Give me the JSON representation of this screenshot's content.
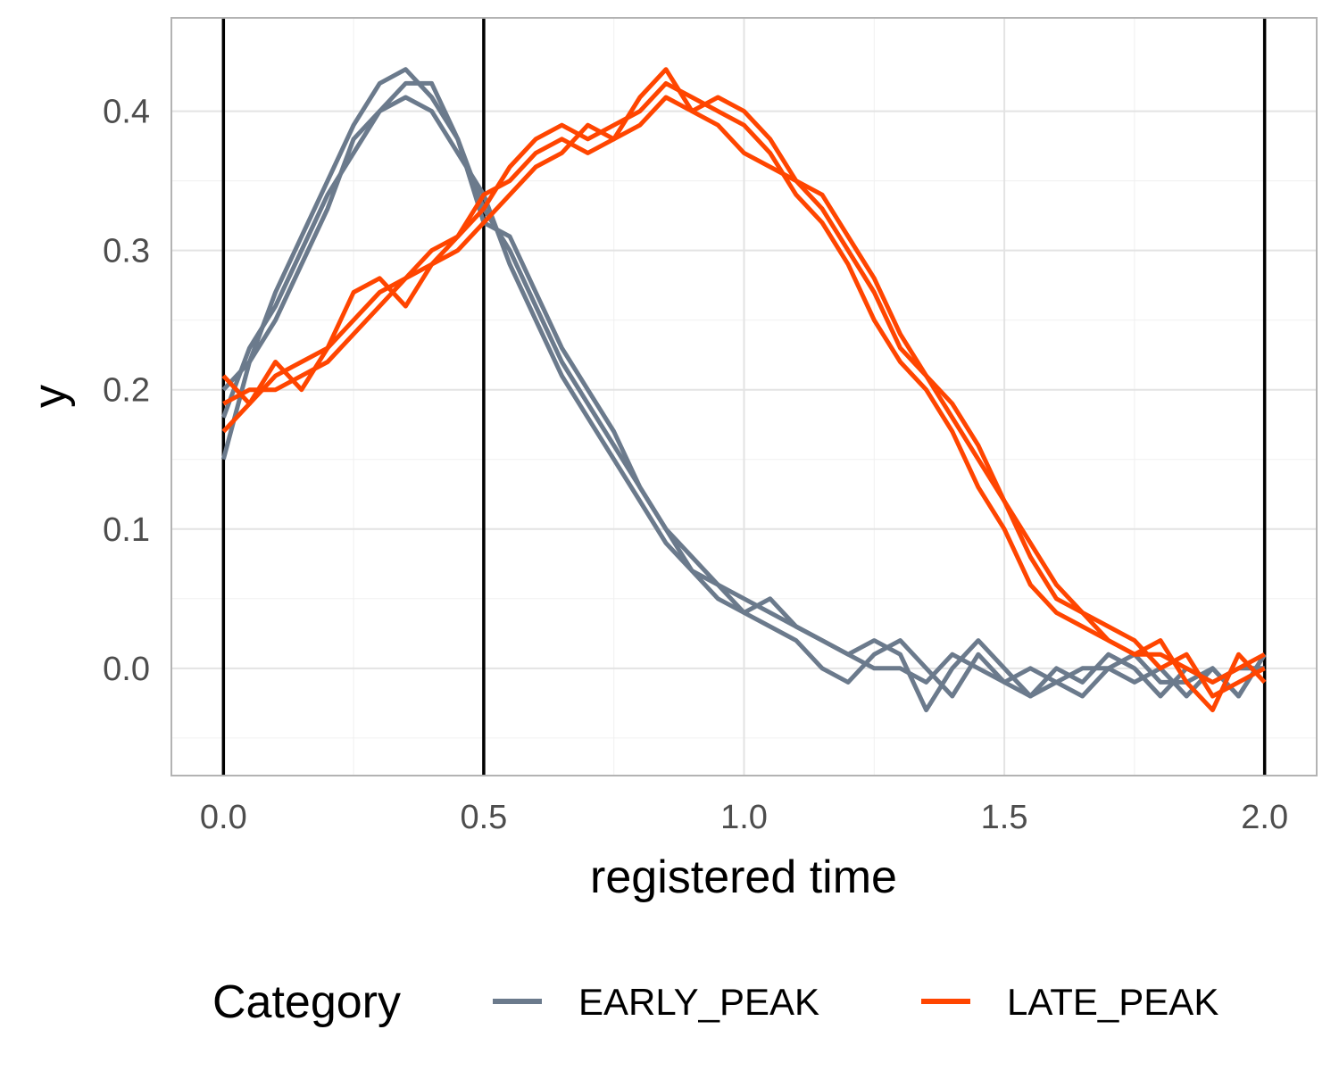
{
  "chart_data": {
    "type": "line",
    "xlabel": "registered time",
    "ylabel": "y",
    "xlim": [
      -0.1,
      2.1
    ],
    "ylim": [
      -0.077,
      0.467
    ],
    "x_ticks": [
      0.0,
      0.5,
      1.0,
      1.5,
      2.0
    ],
    "x_tick_labels": [
      "0.0",
      "0.5",
      "1.0",
      "1.5",
      "2.0"
    ],
    "y_ticks": [
      0.0,
      0.1,
      0.2,
      0.3,
      0.4
    ],
    "y_tick_labels": [
      "0.0",
      "0.1",
      "0.2",
      "0.3",
      "0.4"
    ],
    "vlines": [
      0.0,
      0.5,
      2.0
    ],
    "grid": true,
    "legend": {
      "title": "Category",
      "position": "bottom",
      "entries": [
        {
          "label": "EARLY_PEAK",
          "color": "#6b7a8c"
        },
        {
          "label": "LATE_PEAK",
          "color": "#ff4500"
        }
      ]
    },
    "series": [
      {
        "category": "EARLY_PEAK",
        "color": "#6b7a8c",
        "x": [
          0.0,
          0.05,
          0.1,
          0.15,
          0.2,
          0.25,
          0.3,
          0.35,
          0.4,
          0.45,
          0.5,
          0.55,
          0.6,
          0.65,
          0.7,
          0.75,
          0.8,
          0.85,
          0.9,
          0.95,
          1.0,
          1.05,
          1.1,
          1.15,
          1.2,
          1.25,
          1.3,
          1.35,
          1.4,
          1.45,
          1.5,
          1.55,
          1.6,
          1.65,
          1.7,
          1.75,
          1.8,
          1.85,
          1.9,
          1.95,
          2.0
        ],
        "y": [
          0.15,
          0.22,
          0.27,
          0.31,
          0.35,
          0.39,
          0.42,
          0.43,
          0.41,
          0.38,
          0.33,
          0.3,
          0.26,
          0.22,
          0.19,
          0.16,
          0.13,
          0.1,
          0.07,
          0.06,
          0.05,
          0.04,
          0.03,
          0.02,
          0.01,
          0.0,
          0.0,
          -0.01,
          0.01,
          0.0,
          -0.01,
          0.0,
          -0.01,
          0.0,
          0.0,
          -0.01,
          0.0,
          -0.02,
          0.0,
          -0.02,
          0.01
        ]
      },
      {
        "category": "EARLY_PEAK",
        "color": "#6b7a8c",
        "x": [
          0.0,
          0.05,
          0.1,
          0.15,
          0.2,
          0.25,
          0.3,
          0.35,
          0.4,
          0.45,
          0.5,
          0.55,
          0.6,
          0.65,
          0.7,
          0.75,
          0.8,
          0.85,
          0.9,
          0.95,
          1.0,
          1.05,
          1.1,
          1.15,
          1.2,
          1.25,
          1.3,
          1.35,
          1.4,
          1.45,
          1.5,
          1.55,
          1.6,
          1.65,
          1.7,
          1.75,
          1.8,
          1.85,
          1.9,
          1.95,
          2.0
        ],
        "y": [
          0.18,
          0.23,
          0.26,
          0.3,
          0.34,
          0.37,
          0.4,
          0.41,
          0.4,
          0.37,
          0.34,
          0.29,
          0.25,
          0.21,
          0.18,
          0.15,
          0.12,
          0.09,
          0.07,
          0.05,
          0.04,
          0.03,
          0.02,
          0.0,
          -0.01,
          0.01,
          0.02,
          0.0,
          -0.02,
          0.01,
          -0.01,
          -0.02,
          0.0,
          -0.01,
          0.01,
          0.0,
          -0.02,
          0.0,
          -0.01,
          0.0,
          0.0
        ]
      },
      {
        "category": "EARLY_PEAK",
        "color": "#6b7a8c",
        "x": [
          0.0,
          0.05,
          0.1,
          0.15,
          0.2,
          0.25,
          0.3,
          0.35,
          0.4,
          0.45,
          0.5,
          0.55,
          0.6,
          0.65,
          0.7,
          0.75,
          0.8,
          0.85,
          0.9,
          0.95,
          1.0,
          1.05,
          1.1,
          1.15,
          1.2,
          1.25,
          1.3,
          1.35,
          1.4,
          1.45,
          1.5,
          1.55,
          1.6,
          1.65,
          1.7,
          1.75,
          1.8,
          1.85,
          1.9,
          1.95,
          2.0
        ],
        "y": [
          0.2,
          0.22,
          0.25,
          0.29,
          0.33,
          0.38,
          0.4,
          0.42,
          0.42,
          0.38,
          0.32,
          0.31,
          0.27,
          0.23,
          0.2,
          0.17,
          0.13,
          0.1,
          0.08,
          0.06,
          0.04,
          0.05,
          0.03,
          0.02,
          0.01,
          0.02,
          0.01,
          -0.03,
          0.0,
          0.02,
          0.0,
          -0.02,
          -0.01,
          -0.02,
          0.0,
          0.01,
          -0.01,
          -0.01,
          0.0,
          -0.02,
          0.01
        ]
      },
      {
        "category": "LATE_PEAK",
        "color": "#ff4500",
        "x": [
          0.0,
          0.05,
          0.1,
          0.15,
          0.2,
          0.25,
          0.3,
          0.35,
          0.4,
          0.45,
          0.5,
          0.55,
          0.6,
          0.65,
          0.7,
          0.75,
          0.8,
          0.85,
          0.9,
          0.95,
          1.0,
          1.05,
          1.1,
          1.15,
          1.2,
          1.25,
          1.3,
          1.35,
          1.4,
          1.45,
          1.5,
          1.55,
          1.6,
          1.65,
          1.7,
          1.75,
          1.8,
          1.85,
          1.9,
          1.95,
          2.0
        ],
        "y": [
          0.17,
          0.19,
          0.21,
          0.22,
          0.23,
          0.25,
          0.27,
          0.28,
          0.29,
          0.31,
          0.33,
          0.36,
          0.38,
          0.39,
          0.38,
          0.39,
          0.4,
          0.42,
          0.41,
          0.4,
          0.39,
          0.37,
          0.34,
          0.32,
          0.29,
          0.25,
          0.22,
          0.2,
          0.17,
          0.13,
          0.1,
          0.06,
          0.04,
          0.03,
          0.02,
          0.01,
          0.01,
          0.0,
          -0.01,
          0.0,
          0.01
        ]
      },
      {
        "category": "LATE_PEAK",
        "color": "#ff4500",
        "x": [
          0.0,
          0.05,
          0.1,
          0.15,
          0.2,
          0.25,
          0.3,
          0.35,
          0.4,
          0.45,
          0.5,
          0.55,
          0.6,
          0.65,
          0.7,
          0.75,
          0.8,
          0.85,
          0.9,
          0.95,
          1.0,
          1.05,
          1.1,
          1.15,
          1.2,
          1.25,
          1.3,
          1.35,
          1.4,
          1.45,
          1.5,
          1.55,
          1.6,
          1.65,
          1.7,
          1.75,
          1.8,
          1.85,
          1.9,
          1.95,
          2.0
        ],
        "y": [
          0.19,
          0.2,
          0.2,
          0.21,
          0.22,
          0.24,
          0.26,
          0.28,
          0.3,
          0.31,
          0.34,
          0.35,
          0.37,
          0.38,
          0.37,
          0.38,
          0.39,
          0.41,
          0.4,
          0.39,
          0.37,
          0.36,
          0.35,
          0.33,
          0.3,
          0.27,
          0.23,
          0.21,
          0.18,
          0.15,
          0.12,
          0.09,
          0.06,
          0.04,
          0.03,
          0.02,
          0.0,
          0.01,
          -0.02,
          -0.01,
          0.0
        ]
      },
      {
        "category": "LATE_PEAK",
        "color": "#ff4500",
        "x": [
          0.0,
          0.05,
          0.1,
          0.15,
          0.2,
          0.25,
          0.3,
          0.35,
          0.4,
          0.45,
          0.5,
          0.55,
          0.6,
          0.65,
          0.7,
          0.75,
          0.8,
          0.85,
          0.9,
          0.95,
          1.0,
          1.05,
          1.1,
          1.15,
          1.2,
          1.25,
          1.3,
          1.35,
          1.4,
          1.45,
          1.5,
          1.55,
          1.6,
          1.65,
          1.7,
          1.75,
          1.8,
          1.85,
          1.9,
          1.95,
          2.0
        ],
        "y": [
          0.21,
          0.19,
          0.22,
          0.2,
          0.23,
          0.27,
          0.28,
          0.26,
          0.29,
          0.3,
          0.32,
          0.34,
          0.36,
          0.37,
          0.39,
          0.38,
          0.41,
          0.43,
          0.4,
          0.41,
          0.4,
          0.38,
          0.35,
          0.34,
          0.31,
          0.28,
          0.24,
          0.21,
          0.19,
          0.16,
          0.12,
          0.08,
          0.05,
          0.04,
          0.02,
          0.01,
          0.02,
          -0.01,
          -0.03,
          0.01,
          -0.01
        ]
      }
    ]
  }
}
